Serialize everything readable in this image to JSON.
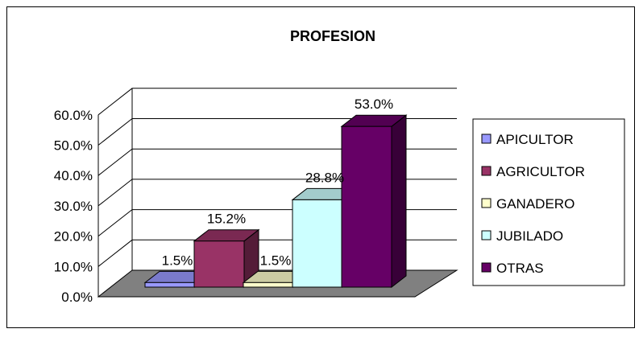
{
  "chart_data": {
    "type": "bar",
    "title": "PROFESION",
    "categories": [
      "APICULTOR",
      "AGRICULTOR",
      "GANADERO",
      "JUBILADO",
      "OTRAS"
    ],
    "values": [
      1.5,
      15.2,
      1.5,
      28.8,
      53.0
    ],
    "data_labels": [
      "1.5%",
      "15.2%",
      "1.5%",
      "28.8%",
      "53.0%"
    ],
    "ylim": [
      0,
      60
    ],
    "yticks": [
      "0.0%",
      "10.0%",
      "20.0%",
      "30.0%",
      "40.0%",
      "50.0%",
      "60.0%"
    ],
    "xlabel": "",
    "ylabel": "",
    "grid": true,
    "three_d": true,
    "legend_position": "right",
    "colors": [
      "#9999ff",
      "#993366",
      "#ffffcc",
      "#ccffff",
      "#660066"
    ],
    "floor_color": "#808080"
  }
}
